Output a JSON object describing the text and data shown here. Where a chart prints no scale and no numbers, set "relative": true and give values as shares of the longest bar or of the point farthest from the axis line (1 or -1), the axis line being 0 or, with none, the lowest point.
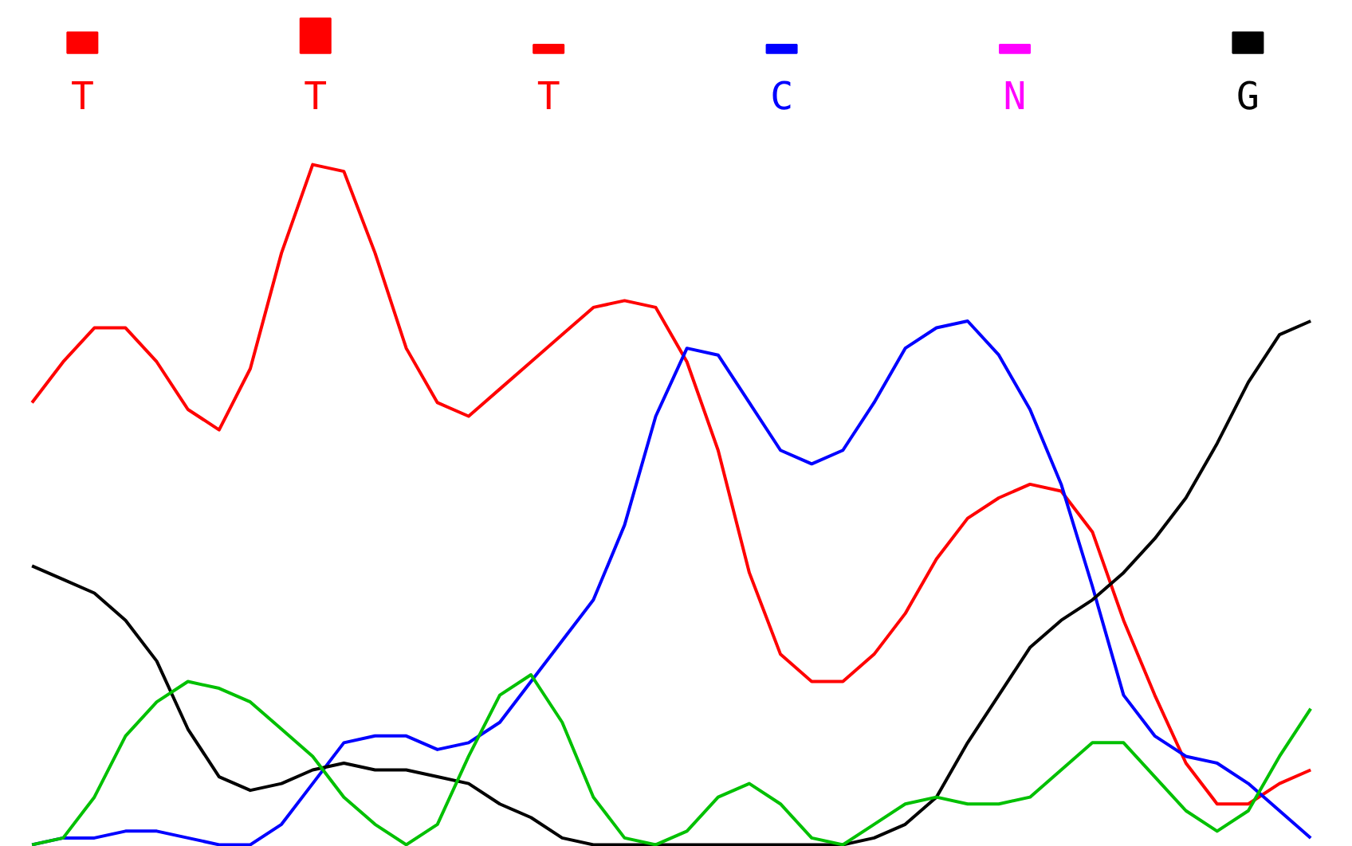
{
  "chart_data": [
    {
      "type": "bar",
      "relative": true,
      "categories": [
        "T",
        "T",
        "T",
        "C",
        "N",
        "G"
      ],
      "values": [
        0.6,
        1,
        0.25,
        0.25,
        0.25,
        0.6
      ],
      "colors": [
        "#ff0000",
        "#ff0000",
        "#ff0000",
        "#0000ff",
        "#ff00ff",
        "#000000"
      ],
      "grid": false
    },
    {
      "type": "line",
      "relative": true,
      "grid": false,
      "marker": "none",
      "line_style": "solid",
      "categories": [
        null,
        null,
        null,
        null,
        null,
        null,
        null,
        null,
        null,
        null,
        null,
        null,
        null,
        null,
        null,
        null,
        null,
        null,
        null,
        null,
        null,
        null,
        null,
        null,
        null,
        null,
        null,
        null,
        null,
        null,
        null,
        null,
        null,
        null,
        null,
        null,
        null,
        null,
        null,
        null,
        null,
        null
      ],
      "series": [
        {
          "color": "#ff0000",
          "values": [
            0.65,
            0.71,
            0.76,
            0.76,
            0.71,
            0.64,
            0.61,
            0.7,
            0.87,
            1.0,
            0.99,
            0.87,
            0.73,
            0.65,
            0.63,
            0.67,
            0.71,
            0.75,
            0.79,
            0.8,
            0.79,
            0.71,
            0.58,
            0.4,
            0.28,
            0.24,
            0.24,
            0.28,
            0.34,
            0.42,
            0.48,
            0.51,
            0.53,
            0.52,
            0.46,
            0.33,
            0.22,
            0.12,
            0.06,
            0.06,
            0.09,
            0.11
          ]
        },
        {
          "color": "#0000ff",
          "values": [
            0.0,
            0.01,
            0.01,
            0.02,
            0.02,
            0.01,
            0.0,
            0.0,
            0.03,
            0.09,
            0.15,
            0.16,
            0.16,
            0.14,
            0.15,
            0.18,
            0.24,
            0.3,
            0.36,
            0.47,
            0.63,
            0.73,
            0.72,
            0.65,
            0.58,
            0.56,
            0.58,
            0.65,
            0.73,
            0.76,
            0.77,
            0.72,
            0.64,
            0.53,
            0.38,
            0.22,
            0.16,
            0.13,
            0.12,
            0.09,
            0.05,
            0.01
          ]
        },
        {
          "color": "#000000",
          "values": [
            0.41,
            0.39,
            0.37,
            0.33,
            0.27,
            0.17,
            0.1,
            0.08,
            0.09,
            0.11,
            0.12,
            0.11,
            0.11,
            0.1,
            0.09,
            0.06,
            0.04,
            0.01,
            0.0,
            0.0,
            0.0,
            0.0,
            0.0,
            0.0,
            0.0,
            0.0,
            0.0,
            0.01,
            0.03,
            0.07,
            0.15,
            0.22,
            0.29,
            0.33,
            0.36,
            0.4,
            0.45,
            0.51,
            0.59,
            0.68,
            0.75,
            0.77
          ]
        },
        {
          "color": "#00c000",
          "values": [
            0.0,
            0.01,
            0.07,
            0.16,
            0.21,
            0.24,
            0.23,
            0.21,
            0.17,
            0.13,
            0.07,
            0.03,
            0.0,
            0.03,
            0.13,
            0.22,
            0.25,
            0.18,
            0.07,
            0.01,
            0.0,
            0.02,
            0.07,
            0.09,
            0.06,
            0.01,
            0.0,
            0.03,
            0.06,
            0.07,
            0.06,
            0.06,
            0.07,
            0.11,
            0.15,
            0.15,
            0.1,
            0.05,
            0.02,
            0.05,
            0.13,
            0.2
          ]
        }
      ]
    }
  ]
}
